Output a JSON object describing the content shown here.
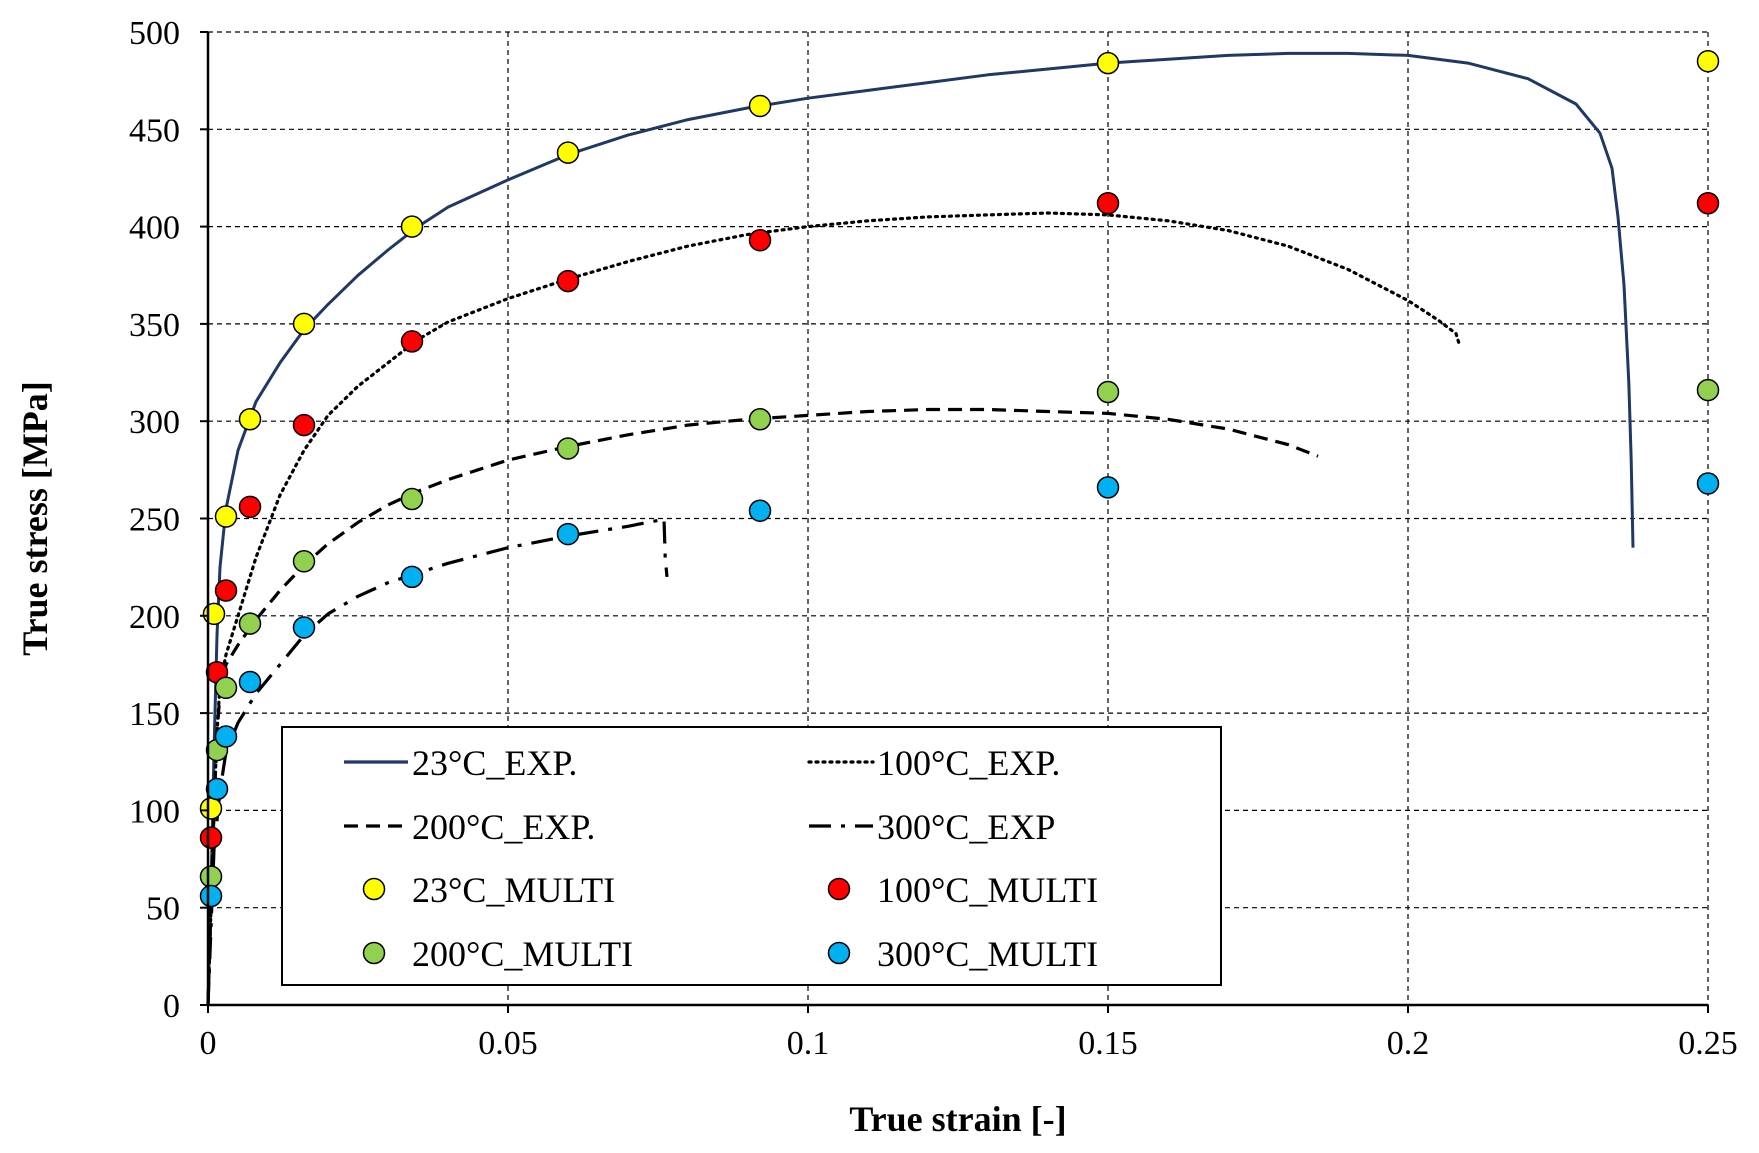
{
  "chart_data": {
    "type": "scatter",
    "title": "",
    "xlabel": "True strain [-]",
    "ylabel": "True stress [MPa]",
    "xlim": [
      0,
      0.25
    ],
    "ylim": [
      0,
      500
    ],
    "grid": true,
    "legend_position": "bottom-center",
    "x_ticks": [
      0,
      0.05,
      0.1,
      0.15,
      0.2,
      0.25
    ],
    "x_tick_labels": [
      "0",
      "0.05",
      "0.1",
      "0.15",
      "0.2",
      "0.25"
    ],
    "y_ticks": [
      0,
      50,
      100,
      150,
      200,
      250,
      300,
      350,
      400,
      450,
      500
    ],
    "y_tick_labels": [
      "0",
      "50",
      "100",
      "150",
      "200",
      "250",
      "300",
      "350",
      "400",
      "450",
      "500"
    ],
    "line_series": [
      {
        "name": "23°C_EXP.",
        "style": "solid",
        "color": "#1f3864",
        "points": [
          [
            0,
            0
          ],
          [
            0.0005,
            60
          ],
          [
            0.001,
            130
          ],
          [
            0.0015,
            190
          ],
          [
            0.002,
            225
          ],
          [
            0.003,
            255
          ],
          [
            0.005,
            285
          ],
          [
            0.008,
            310
          ],
          [
            0.012,
            330
          ],
          [
            0.016,
            347
          ],
          [
            0.02,
            360
          ],
          [
            0.025,
            375
          ],
          [
            0.03,
            388
          ],
          [
            0.035,
            400
          ],
          [
            0.04,
            410
          ],
          [
            0.05,
            424
          ],
          [
            0.06,
            437
          ],
          [
            0.07,
            447
          ],
          [
            0.08,
            455
          ],
          [
            0.09,
            461
          ],
          [
            0.1,
            466
          ],
          [
            0.11,
            470
          ],
          [
            0.12,
            474
          ],
          [
            0.13,
            478
          ],
          [
            0.14,
            481
          ],
          [
            0.15,
            484
          ],
          [
            0.16,
            486
          ],
          [
            0.17,
            488
          ],
          [
            0.18,
            489
          ],
          [
            0.19,
            489
          ],
          [
            0.2,
            488
          ],
          [
            0.21,
            484
          ],
          [
            0.22,
            476
          ],
          [
            0.228,
            463
          ],
          [
            0.232,
            448
          ],
          [
            0.234,
            430
          ],
          [
            0.235,
            405
          ],
          [
            0.236,
            370
          ],
          [
            0.2368,
            320
          ],
          [
            0.2372,
            280
          ],
          [
            0.2375,
            235
          ]
        ]
      },
      {
        "name": "100°C_EXP.",
        "style": "dotted",
        "color": "#000000",
        "points": [
          [
            0,
            0
          ],
          [
            0.0005,
            50
          ],
          [
            0.001,
            100
          ],
          [
            0.0015,
            140
          ],
          [
            0.002,
            165
          ],
          [
            0.003,
            180
          ],
          [
            0.005,
            200
          ],
          [
            0.008,
            230
          ],
          [
            0.012,
            262
          ],
          [
            0.016,
            285
          ],
          [
            0.02,
            303
          ],
          [
            0.025,
            318
          ],
          [
            0.03,
            330
          ],
          [
            0.035,
            342
          ],
          [
            0.04,
            351
          ],
          [
            0.05,
            363
          ],
          [
            0.06,
            373
          ],
          [
            0.07,
            382
          ],
          [
            0.08,
            390
          ],
          [
            0.09,
            396
          ],
          [
            0.1,
            400
          ],
          [
            0.11,
            403
          ],
          [
            0.12,
            405
          ],
          [
            0.13,
            406
          ],
          [
            0.14,
            407
          ],
          [
            0.15,
            406
          ],
          [
            0.16,
            403
          ],
          [
            0.17,
            398
          ],
          [
            0.18,
            390
          ],
          [
            0.19,
            378
          ],
          [
            0.2,
            362
          ],
          [
            0.205,
            352
          ],
          [
            0.208,
            345
          ],
          [
            0.2085,
            340
          ]
        ]
      },
      {
        "name": "200°C_EXP.",
        "style": "dashed",
        "color": "#000000",
        "points": [
          [
            0,
            0
          ],
          [
            0.0005,
            50
          ],
          [
            0.001,
            100
          ],
          [
            0.0015,
            140
          ],
          [
            0.002,
            160
          ],
          [
            0.003,
            175
          ],
          [
            0.005,
            185
          ],
          [
            0.008,
            198
          ],
          [
            0.012,
            213
          ],
          [
            0.016,
            226
          ],
          [
            0.02,
            237
          ],
          [
            0.025,
            248
          ],
          [
            0.03,
            257
          ],
          [
            0.035,
            264
          ],
          [
            0.04,
            270
          ],
          [
            0.05,
            280
          ],
          [
            0.06,
            287
          ],
          [
            0.07,
            293
          ],
          [
            0.08,
            298
          ],
          [
            0.09,
            301
          ],
          [
            0.1,
            303
          ],
          [
            0.11,
            305
          ],
          [
            0.12,
            306
          ],
          [
            0.13,
            306
          ],
          [
            0.14,
            305
          ],
          [
            0.15,
            304
          ],
          [
            0.16,
            301
          ],
          [
            0.17,
            296
          ],
          [
            0.18,
            288
          ],
          [
            0.185,
            282
          ]
        ]
      },
      {
        "name": "300°C_EXP",
        "style": "dash-dot",
        "color": "#000000",
        "points": [
          [
            0,
            0
          ],
          [
            0.0005,
            40
          ],
          [
            0.001,
            80
          ],
          [
            0.002,
            110
          ],
          [
            0.003,
            130
          ],
          [
            0.005,
            145
          ],
          [
            0.008,
            160
          ],
          [
            0.012,
            175
          ],
          [
            0.016,
            190
          ],
          [
            0.02,
            201
          ],
          [
            0.025,
            210
          ],
          [
            0.03,
            217
          ],
          [
            0.035,
            222
          ],
          [
            0.04,
            227
          ],
          [
            0.05,
            235
          ],
          [
            0.06,
            241
          ],
          [
            0.07,
            246
          ],
          [
            0.075,
            249
          ],
          [
            0.076,
            250
          ],
          [
            0.0762,
            230
          ],
          [
            0.0765,
            220
          ]
        ]
      }
    ],
    "scatter_series": [
      {
        "name": "23°C_MULTI",
        "color": "#ffff00",
        "x": [
          0.0005,
          0.001,
          0.003,
          0.007,
          0.016,
          0.034,
          0.06,
          0.092,
          0.15,
          0.25
        ],
        "y": [
          101,
          201,
          251,
          301,
          350,
          400,
          438,
          462,
          484,
          485
        ]
      },
      {
        "name": "100°C_MULTI",
        "color": "#ff0000",
        "x": [
          0.0005,
          0.0015,
          0.003,
          0.007,
          0.016,
          0.034,
          0.06,
          0.092,
          0.15,
          0.25
        ],
        "y": [
          86,
          171,
          213,
          256,
          298,
          341,
          372,
          393,
          412,
          412
        ]
      },
      {
        "name": "200°C_MULTI",
        "color": "#92d050",
        "x": [
          0.0005,
          0.0015,
          0.003,
          0.007,
          0.016,
          0.034,
          0.06,
          0.092,
          0.15,
          0.25
        ],
        "y": [
          66,
          131,
          163,
          196,
          228,
          260,
          286,
          301,
          315,
          316
        ]
      },
      {
        "name": "300°C_MULTI",
        "color": "#00b0f0",
        "x": [
          0.0005,
          0.0015,
          0.003,
          0.007,
          0.016,
          0.034,
          0.06,
          0.092,
          0.15,
          0.25
        ],
        "y": [
          56,
          111,
          138,
          166,
          194,
          220,
          242,
          254,
          266,
          268
        ]
      }
    ],
    "legend": [
      {
        "label": "23°C_EXP.",
        "kind": "line",
        "style": "solid",
        "color": "#1f3864"
      },
      {
        "label": "100°C_EXP.",
        "kind": "line",
        "style": "dotted",
        "color": "#000000"
      },
      {
        "label": "200°C_EXP.",
        "kind": "line",
        "style": "dashed",
        "color": "#000000"
      },
      {
        "label": "300°C_EXP",
        "kind": "line",
        "style": "dash-dot",
        "color": "#000000"
      },
      {
        "label": "23°C_MULTI",
        "kind": "marker",
        "color": "#ffff00"
      },
      {
        "label": "100°C_MULTI",
        "kind": "marker",
        "color": "#ff0000"
      },
      {
        "label": "200°C_MULTI",
        "kind": "marker",
        "color": "#92d050"
      },
      {
        "label": "300°C_MULTI",
        "kind": "marker",
        "color": "#00b0f0"
      }
    ]
  }
}
